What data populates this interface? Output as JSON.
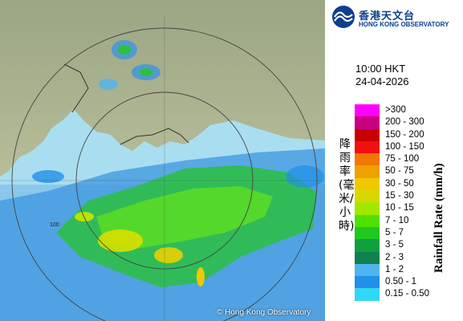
{
  "logo": {
    "name_cn": "香港天文台",
    "name_en": "HONG KONG OBSERVATORY",
    "color": "#0b3f8f"
  },
  "time_label": "10:00 HKT",
  "date_label": "24-04-2026",
  "copyright": "© Hong Kong Observatory",
  "range_ring_labels": [
    "100"
  ],
  "legend": {
    "title_cn": "降雨率(毫米/小時)",
    "title_en": "Rainfall Rate (mm/h)",
    "items": [
      {
        "label": ">300",
        "color": "#ff00ff"
      },
      {
        "label": "200 - 300",
        "color": "#c80080"
      },
      {
        "label": "150 - 200",
        "color": "#c80000"
      },
      {
        "label": "100 - 150",
        "color": "#f01010"
      },
      {
        "label": "75 - 100",
        "color": "#f07800"
      },
      {
        "label": "50 - 75",
        "color": "#f0a000"
      },
      {
        "label": "30 - 50",
        "color": "#f0c800"
      },
      {
        "label": "15 - 30",
        "color": "#d8d800"
      },
      {
        "label": "10 - 15",
        "color": "#a0e800"
      },
      {
        "label": "7 - 10",
        "color": "#50e000"
      },
      {
        "label": "5 - 7",
        "color": "#20c820"
      },
      {
        "label": "3 - 5",
        "color": "#10a040"
      },
      {
        "label": "2 - 3",
        "color": "#108050"
      },
      {
        "label": "1 - 2",
        "color": "#4fb4f0"
      },
      {
        "label": "0.50 - 1",
        "color": "#2090e8"
      },
      {
        "label": "0.15 - 0.50",
        "color": "#30d8f8"
      }
    ]
  }
}
